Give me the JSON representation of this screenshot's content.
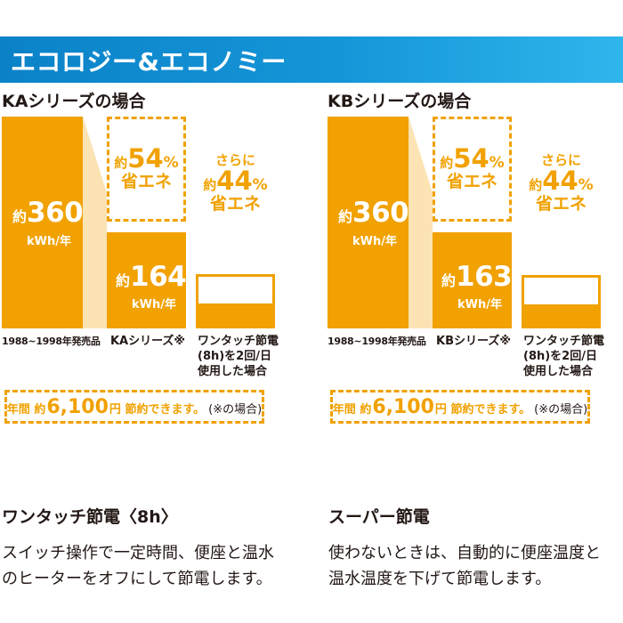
{
  "banner": {
    "title": "エコロジー&エコノミー"
  },
  "panels": [
    {
      "title": "KAシリーズの場合",
      "baseline": {
        "prefix": "約",
        "value": "360",
        "unit": "kWh/年"
      },
      "series": {
        "prefix": "約",
        "value": "164",
        "unit": "kWh/年"
      },
      "save_series": {
        "prefix": "約",
        "value": "54",
        "pct": "%",
        "label": "省エネ"
      },
      "save_option": {
        "prefix_line": "さらに",
        "prefix": "約",
        "value": "44",
        "pct": "%",
        "label": "省エネ"
      },
      "categories": [
        "1988~1998年発売品",
        "KAシリーズ※",
        "ワンタッチ節電\n(8h)を2回/日\n使用した場合"
      ],
      "summary": {
        "a": "年間 約",
        "b": "6,100",
        "c": "円 節約できます。",
        "d": "(※の場合)"
      }
    },
    {
      "title": "KBシリーズの場合",
      "baseline": {
        "prefix": "約",
        "value": "360",
        "unit": "kWh/年"
      },
      "series": {
        "prefix": "約",
        "value": "163",
        "unit": "kWh/年"
      },
      "save_series": {
        "prefix": "約",
        "value": "54",
        "pct": "%",
        "label": "省エネ"
      },
      "save_option": {
        "prefix_line": "さらに",
        "prefix": "約",
        "value": "44",
        "pct": "%",
        "label": "省エネ"
      },
      "categories": [
        "1988~1998年発売品",
        "KBシリーズ※",
        "ワンタッチ節電\n(8h)を2回/日\n使用した場合"
      ],
      "summary": {
        "a": "年間 約",
        "b": "6,100",
        "c": "円 節約できます。",
        "d": "(※の場合)"
      }
    }
  ],
  "features": [
    {
      "title": "ワンタッチ節電〈8h〉",
      "body": [
        "スイッチ操作で一定時間、便座と温水",
        "のヒーターをオフにして節電します。"
      ]
    },
    {
      "title": "スーパー節電",
      "body": [
        "使わないときは、自動的に便座温度と",
        "温水温度を下げて節電します。"
      ]
    }
  ],
  "chart_data": [
    {
      "type": "bar",
      "title": "KAシリーズの場合",
      "categories": [
        "1988~1998年発売品",
        "KAシリーズ※",
        "ワンタッチ節電(8h)を2回/日使用した場合"
      ],
      "values": [
        360,
        164,
        92
      ],
      "unit": "kWh/年",
      "annotations": [
        "約54% 省エネ",
        "さらに 約44% 省エネ"
      ],
      "bar_color": "#f1a100"
    },
    {
      "type": "bar",
      "title": "KBシリーズの場合",
      "categories": [
        "1988~1998年発売品",
        "KBシリーズ※",
        "ワンタッチ節電(8h)を2回/日使用した場合"
      ],
      "values": [
        360,
        163,
        91
      ],
      "unit": "kWh/年",
      "annotations": [
        "約54% 省エネ",
        "さらに 約44% 省エネ"
      ],
      "bar_color": "#f1a100"
    }
  ]
}
